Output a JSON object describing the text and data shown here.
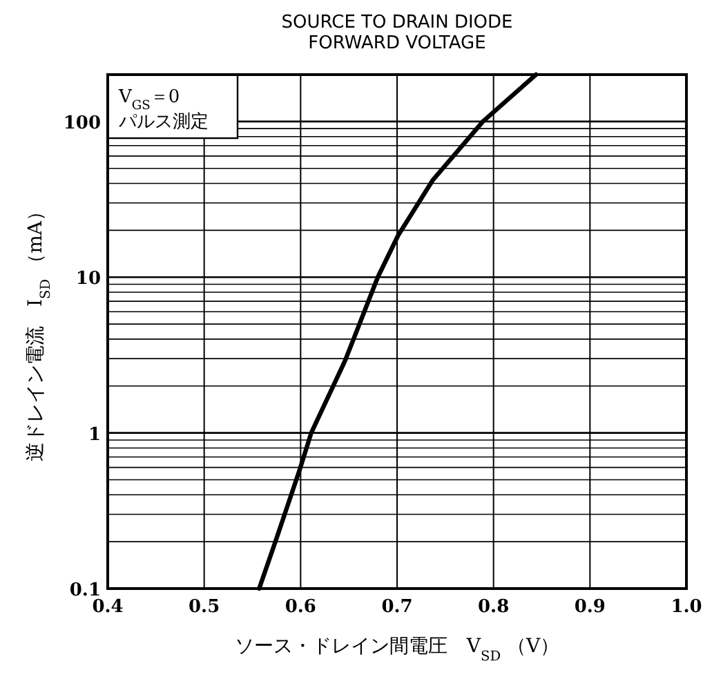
{
  "chart_data": {
    "type": "line",
    "title": "SOURCE TO DRAIN DIODE\nFORWARD VOLTAGE",
    "xlabel": "ソース・ドレイン間電圧　V$_{SD}$ （V）",
    "ylabel": "逆ドレイン電流　I$_{SD}$ （mA）",
    "annotations": [
      "V$_{GS}$＝0",
      "パルス測定"
    ],
    "log": "y",
    "xlim": [
      0.4,
      1.0
    ],
    "ylim": [
      0.1,
      200
    ],
    "xticks": [
      0.4,
      0.5,
      0.6,
      0.7,
      0.8,
      0.9,
      {
        "value": 1.0,
        "label": "1.0"
      }
    ],
    "yticks": [
      0.1,
      1,
      10,
      100
    ],
    "grid": true,
    "line_style": "solid",
    "marker": "none",
    "series": [
      {
        "color": "#000000",
        "x": [
          0.557,
          0.575,
          0.599,
          0.611,
          0.646,
          0.68,
          0.701,
          0.737,
          0.789,
          0.844
        ],
        "values": [
          0.1,
          0.21,
          0.58,
          1,
          2.9,
          10,
          18.5,
          42,
          100,
          200
        ]
      }
    ]
  }
}
